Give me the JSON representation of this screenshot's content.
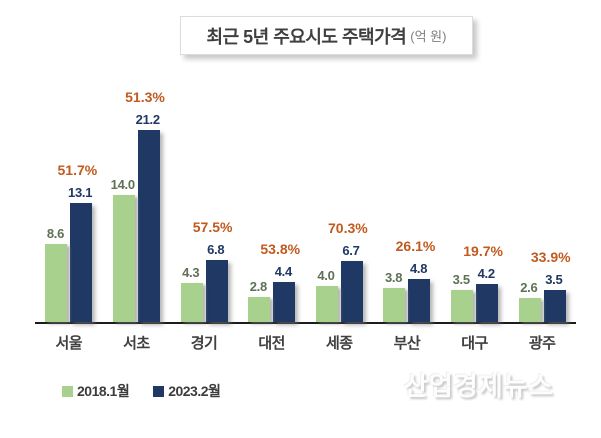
{
  "header": {
    "title": "최근 5년 주요시도 주택가격",
    "unit": "(억 원)"
  },
  "chart_data": {
    "type": "bar",
    "title": "최근 5년 주요시도 주택가격 (억 원)",
    "categories": [
      "서울",
      "서초",
      "경기",
      "대전",
      "세종",
      "부산",
      "대구",
      "광주"
    ],
    "series": [
      {
        "name": "2018.1월",
        "color": "#a9d18e",
        "values": [
          8.6,
          14.0,
          4.3,
          2.8,
          4.0,
          3.8,
          3.5,
          2.6
        ]
      },
      {
        "name": "2023.2월",
        "color": "#1f3864",
        "values": [
          13.1,
          21.2,
          6.8,
          4.4,
          6.7,
          4.8,
          4.2,
          3.5
        ]
      }
    ],
    "pct_change_labels": [
      "51.7%",
      "51.3%",
      "57.5%",
      "53.8%",
      "70.3%",
      "26.1%",
      "19.7%",
      "33.9%"
    ],
    "ylim": [
      0,
      22
    ],
    "grid": false,
    "y_axis_shown": false,
    "legend_position": "bottom-left",
    "value_label_decimals": 1
  },
  "legend": {
    "items": [
      {
        "label": "2018.1월",
        "color": "#a9d18e"
      },
      {
        "label": "2023.2월",
        "color": "#1f3864"
      }
    ]
  },
  "watermark": {
    "text": "산업경제뉴스"
  },
  "colors": {
    "bar_2018": "#a9d18e",
    "bar_2023": "#1f3864",
    "pct_label": "#c05a1e",
    "value_2018_label": "#5e7154",
    "value_2023_label": "#1f3864",
    "axis": "#1c1c1c"
  }
}
